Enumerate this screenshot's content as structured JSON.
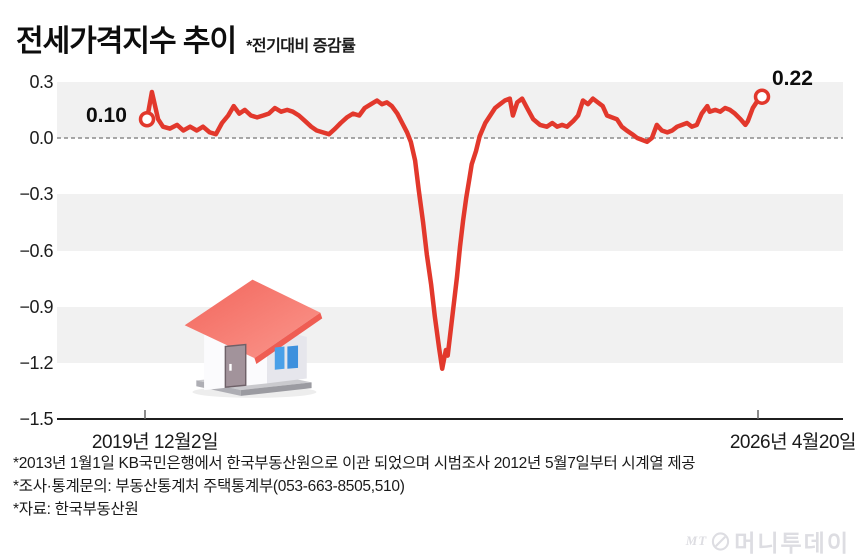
{
  "title": "전세가격지수 추이",
  "subtitle": "*전기대비 증감률",
  "chart_data": {
    "type": "line",
    "title": "전세가격지수 추이",
    "subtitle_note": "전기대비 증감률",
    "series_color": "#e2382c",
    "band_color": "#f1f1f1",
    "zero_line": {
      "value": 0.0,
      "style": "dashed",
      "color": "#8c8c8c"
    },
    "ylim": [
      -1.5,
      0.3
    ],
    "yticks": [
      "0.3",
      "0.0",
      "−0.3",
      "−0.6",
      "−0.9",
      "−1.2",
      "−1.5"
    ],
    "x_start_label": "2019년 12월2일",
    "x_end_label": "2026년 4월20일",
    "start_point_label": "0.10",
    "end_point_label": "0.22",
    "start_value": 0.1,
    "end_value": 0.22,
    "min_value": -1.23,
    "points": [
      [
        0.0,
        0.1
      ],
      [
        0.008,
        0.245
      ],
      [
        0.018,
        0.1
      ],
      [
        0.026,
        0.06
      ],
      [
        0.037,
        0.05
      ],
      [
        0.049,
        0.07
      ],
      [
        0.059,
        0.04
      ],
      [
        0.07,
        0.06
      ],
      [
        0.081,
        0.04
      ],
      [
        0.091,
        0.06
      ],
      [
        0.102,
        0.03
      ],
      [
        0.112,
        0.02
      ],
      [
        0.122,
        0.08
      ],
      [
        0.132,
        0.12
      ],
      [
        0.141,
        0.17
      ],
      [
        0.15,
        0.13
      ],
      [
        0.159,
        0.15
      ],
      [
        0.169,
        0.12
      ],
      [
        0.179,
        0.11
      ],
      [
        0.189,
        0.12
      ],
      [
        0.198,
        0.13
      ],
      [
        0.208,
        0.16
      ],
      [
        0.218,
        0.14
      ],
      [
        0.228,
        0.15
      ],
      [
        0.237,
        0.14
      ],
      [
        0.247,
        0.12
      ],
      [
        0.257,
        0.09
      ],
      [
        0.267,
        0.06
      ],
      [
        0.276,
        0.04
      ],
      [
        0.286,
        0.03
      ],
      [
        0.296,
        0.02
      ],
      [
        0.306,
        0.05
      ],
      [
        0.315,
        0.08
      ],
      [
        0.325,
        0.11
      ],
      [
        0.335,
        0.13
      ],
      [
        0.345,
        0.12
      ],
      [
        0.354,
        0.16
      ],
      [
        0.364,
        0.18
      ],
      [
        0.374,
        0.2
      ],
      [
        0.382,
        0.18
      ],
      [
        0.39,
        0.19
      ],
      [
        0.398,
        0.17
      ],
      [
        0.407,
        0.13
      ],
      [
        0.415,
        0.08
      ],
      [
        0.423,
        0.03
      ],
      [
        0.429,
        -0.02
      ],
      [
        0.436,
        -0.12
      ],
      [
        0.442,
        -0.28
      ],
      [
        0.449,
        -0.45
      ],
      [
        0.455,
        -0.62
      ],
      [
        0.462,
        -0.78
      ],
      [
        0.468,
        -0.95
      ],
      [
        0.475,
        -1.12
      ],
      [
        0.48,
        -1.23
      ],
      [
        0.483,
        -1.18
      ],
      [
        0.486,
        -1.13
      ],
      [
        0.489,
        -1.16
      ],
      [
        0.494,
        -1.02
      ],
      [
        0.499,
        -0.88
      ],
      [
        0.504,
        -0.74
      ],
      [
        0.509,
        -0.58
      ],
      [
        0.514,
        -0.44
      ],
      [
        0.519,
        -0.32
      ],
      [
        0.524,
        -0.22
      ],
      [
        0.528,
        -0.14
      ],
      [
        0.535,
        -0.07
      ],
      [
        0.541,
        0.01
      ],
      [
        0.55,
        0.08
      ],
      [
        0.558,
        0.12
      ],
      [
        0.566,
        0.16
      ],
      [
        0.574,
        0.18
      ],
      [
        0.582,
        0.2
      ],
      [
        0.59,
        0.21
      ],
      [
        0.595,
        0.12
      ],
      [
        0.602,
        0.19
      ],
      [
        0.61,
        0.21
      ],
      [
        0.618,
        0.16
      ],
      [
        0.628,
        0.1
      ],
      [
        0.639,
        0.07
      ],
      [
        0.65,
        0.06
      ],
      [
        0.659,
        0.08
      ],
      [
        0.667,
        0.06
      ],
      [
        0.675,
        0.07
      ],
      [
        0.683,
        0.06
      ],
      [
        0.693,
        0.09
      ],
      [
        0.701,
        0.12
      ],
      [
        0.709,
        0.2
      ],
      [
        0.717,
        0.18
      ],
      [
        0.725,
        0.21
      ],
      [
        0.733,
        0.19
      ],
      [
        0.741,
        0.17
      ],
      [
        0.748,
        0.12
      ],
      [
        0.756,
        0.11
      ],
      [
        0.764,
        0.1
      ],
      [
        0.772,
        0.06
      ],
      [
        0.78,
        0.04
      ],
      [
        0.789,
        0.02
      ],
      [
        0.797,
        0.0
      ],
      [
        0.805,
        -0.01
      ],
      [
        0.813,
        -0.02
      ],
      [
        0.821,
        0.0
      ],
      [
        0.829,
        0.07
      ],
      [
        0.837,
        0.04
      ],
      [
        0.846,
        0.03
      ],
      [
        0.854,
        0.04
      ],
      [
        0.862,
        0.06
      ],
      [
        0.87,
        0.07
      ],
      [
        0.878,
        0.08
      ],
      [
        0.886,
        0.06
      ],
      [
        0.894,
        0.07
      ],
      [
        0.902,
        0.13
      ],
      [
        0.911,
        0.17
      ],
      [
        0.915,
        0.14
      ],
      [
        0.924,
        0.15
      ],
      [
        0.932,
        0.14
      ],
      [
        0.94,
        0.16
      ],
      [
        0.948,
        0.15
      ],
      [
        0.956,
        0.13
      ],
      [
        0.965,
        0.1
      ],
      [
        0.973,
        0.07
      ],
      [
        0.977,
        0.09
      ],
      [
        0.985,
        0.16
      ],
      [
        0.993,
        0.2
      ],
      [
        1.0,
        0.22
      ]
    ]
  },
  "footnotes": [
    "*2013년 1월1일 KB국민은행에서 한국부동산원으로 이관 되었으며 시범조사 2012년 5월7일부터 시계열 제공",
    "*조사·통계문의: 부동산통계처 주택통계부(053-663-8505,510)",
    "*자료: 한국부동산원"
  ],
  "logo": {
    "mt": "MT",
    "name": "머니투데이"
  }
}
